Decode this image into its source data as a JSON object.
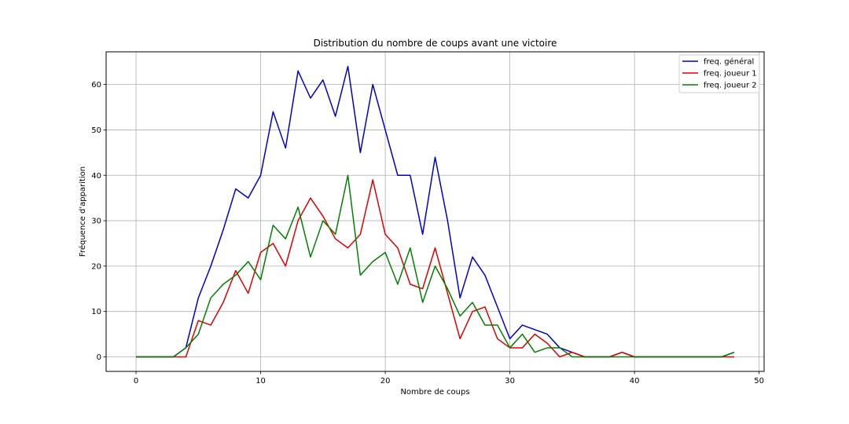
{
  "chart_data": {
    "type": "line",
    "title": "Distribution du nombre de coups avant une victoire",
    "xlabel": "Nombre de coups",
    "ylabel": "Fréquence d'apparition",
    "xlim": [
      -2.4,
      50.4
    ],
    "ylim": [
      -3.2,
      67.2
    ],
    "xticks": [
      0,
      10,
      20,
      30,
      40,
      50
    ],
    "yticks": [
      0,
      10,
      20,
      30,
      40,
      50,
      60
    ],
    "grid": true,
    "legend_position": "top-right",
    "x": [
      0,
      1,
      2,
      3,
      4,
      5,
      6,
      7,
      8,
      9,
      10,
      11,
      12,
      13,
      14,
      15,
      16,
      17,
      18,
      19,
      20,
      21,
      22,
      23,
      24,
      25,
      26,
      27,
      28,
      29,
      30,
      31,
      32,
      33,
      34,
      35,
      36,
      37,
      38,
      39,
      40,
      41,
      42,
      43,
      44,
      45,
      46,
      47,
      48
    ],
    "series": [
      {
        "name": "freq. général",
        "color": "#0000cc",
        "values": [
          0,
          0,
          0,
          0,
          2,
          13,
          20,
          28,
          37,
          35,
          40,
          54,
          46,
          63,
          57,
          61,
          53,
          64,
          45,
          60,
          50,
          40,
          40,
          27,
          44,
          30,
          13,
          22,
          18,
          11,
          4,
          7,
          6,
          5,
          2,
          1,
          0,
          0,
          0,
          1,
          0,
          0,
          0,
          0,
          0,
          0,
          0,
          0,
          1
        ]
      },
      {
        "name": "freq. joueur 1",
        "color": "#e00000",
        "values": [
          0,
          0,
          0,
          0,
          0,
          8,
          7,
          12,
          19,
          14,
          23,
          25,
          20,
          30,
          35,
          31,
          26,
          24,
          27,
          39,
          27,
          24,
          16,
          15,
          24,
          14,
          4,
          10,
          11,
          4,
          2,
          2,
          5,
          3,
          0,
          1,
          0,
          0,
          0,
          1,
          0,
          0,
          0,
          0,
          0,
          0,
          0,
          0,
          0
        ]
      },
      {
        "name": "freq. joueur 2",
        "color": "#008000",
        "values": [
          0,
          0,
          0,
          0,
          2,
          5,
          13,
          16,
          18,
          21,
          17,
          29,
          26,
          33,
          22,
          30,
          27,
          40,
          18,
          21,
          23,
          16,
          24,
          12,
          20,
          15,
          9,
          12,
          7,
          7,
          2,
          5,
          1,
          2,
          2,
          0,
          0,
          0,
          0,
          0,
          0,
          0,
          0,
          0,
          0,
          0,
          0,
          0,
          1
        ]
      }
    ]
  }
}
